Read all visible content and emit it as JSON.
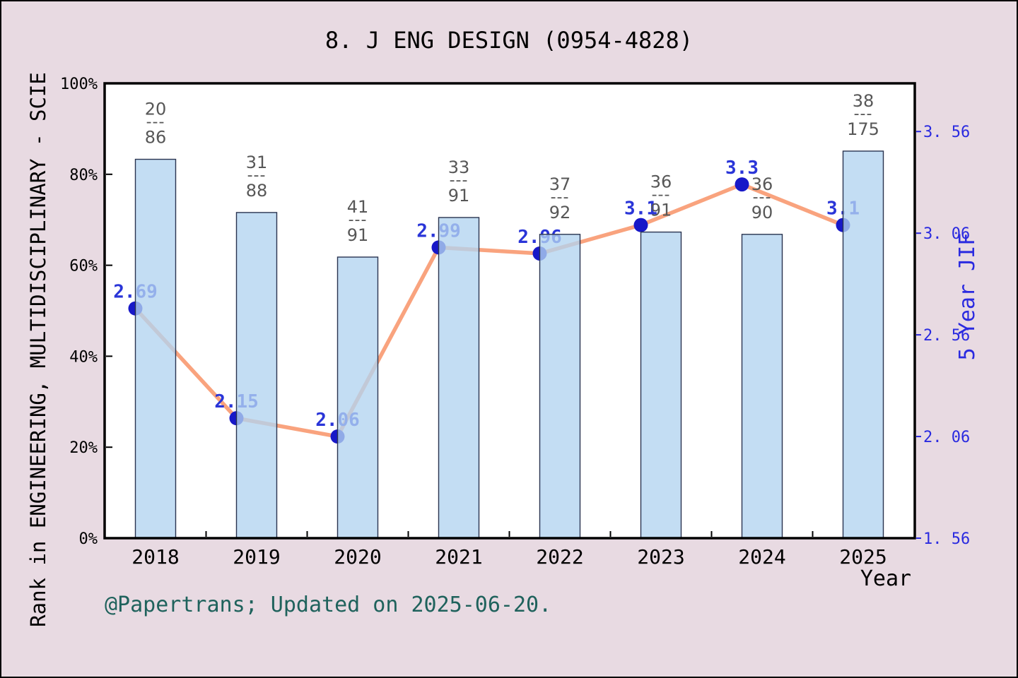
{
  "page": {
    "background": "#e8dae2",
    "border_color": "#000000"
  },
  "chart_data": {
    "type": "bar+line",
    "title": "8. J ENG DESIGN (0954-4828)",
    "footer": "@Papertrans; Updated on 2025-06-20.",
    "x_axis": {
      "label": "Year",
      "categories": [
        "2018",
        "2019",
        "2020",
        "2021",
        "2022",
        "2023",
        "2024",
        "2025"
      ]
    },
    "left_axis": {
      "label": "Rank in ENGINEERING, MULTIDISCIPLINARY - SCIE",
      "min": 0,
      "max": 100,
      "ticks": [
        {
          "value": 0,
          "label": "0%"
        },
        {
          "value": 20,
          "label": "20%"
        },
        {
          "value": 40,
          "label": "40%"
        },
        {
          "value": 60,
          "label": "60%"
        },
        {
          "value": 80,
          "label": "80%"
        },
        {
          "value": 100,
          "label": "100%"
        }
      ]
    },
    "right_axis": {
      "label": "5 Year JIF",
      "min": 1.56,
      "max": 3.797,
      "ticks": [
        {
          "value": 1.56,
          "label": "1.56"
        },
        {
          "value": 2.06,
          "label": "2.06"
        },
        {
          "value": 2.56,
          "label": "2.56"
        },
        {
          "value": 3.06,
          "label": "3.06"
        },
        {
          "value": 3.56,
          "label": "3.56"
        }
      ]
    },
    "bars": {
      "name": "Rank in category percentile",
      "values_percent": [
        83.3,
        71.6,
        61.8,
        70.5,
        66.8,
        67.3,
        66.8,
        85.1
      ],
      "rank_labels": [
        {
          "numerator": "20",
          "denominator": "86"
        },
        {
          "numerator": "31",
          "denominator": "88"
        },
        {
          "numerator": "41",
          "denominator": "91"
        },
        {
          "numerator": "33",
          "denominator": "91"
        },
        {
          "numerator": "37",
          "denominator": "92"
        },
        {
          "numerator": "36",
          "denominator": "91"
        },
        {
          "numerator": "36",
          "denominator": "90"
        },
        {
          "numerator": "38",
          "denominator": "175"
        }
      ]
    },
    "line": {
      "name": "5 Year JIF",
      "values": [
        2.69,
        2.15,
        2.06,
        2.99,
        2.96,
        3.1,
        3.3,
        3.1
      ],
      "labels": [
        "2.69",
        "2.15",
        "2.06",
        "2.99",
        "2.96",
        "3.1",
        "3.3",
        "3.1"
      ]
    },
    "colors": {
      "plot_bg": "#ffffff",
      "spine": "#000000",
      "bar_fill": "#b2d4f0",
      "bar_fill_opacity": 0.78,
      "bar_border": "#2a3450",
      "line": "#f9a37e",
      "marker": "#1818c8",
      "value_label": "#2a35d8",
      "right_axis_text": "#2a2ae0",
      "left_axis_text": "#000000",
      "x_axis_text": "#000000",
      "fraction_text": "#575757",
      "footer_text": "#1f625c",
      "title_text": "#000000"
    }
  }
}
